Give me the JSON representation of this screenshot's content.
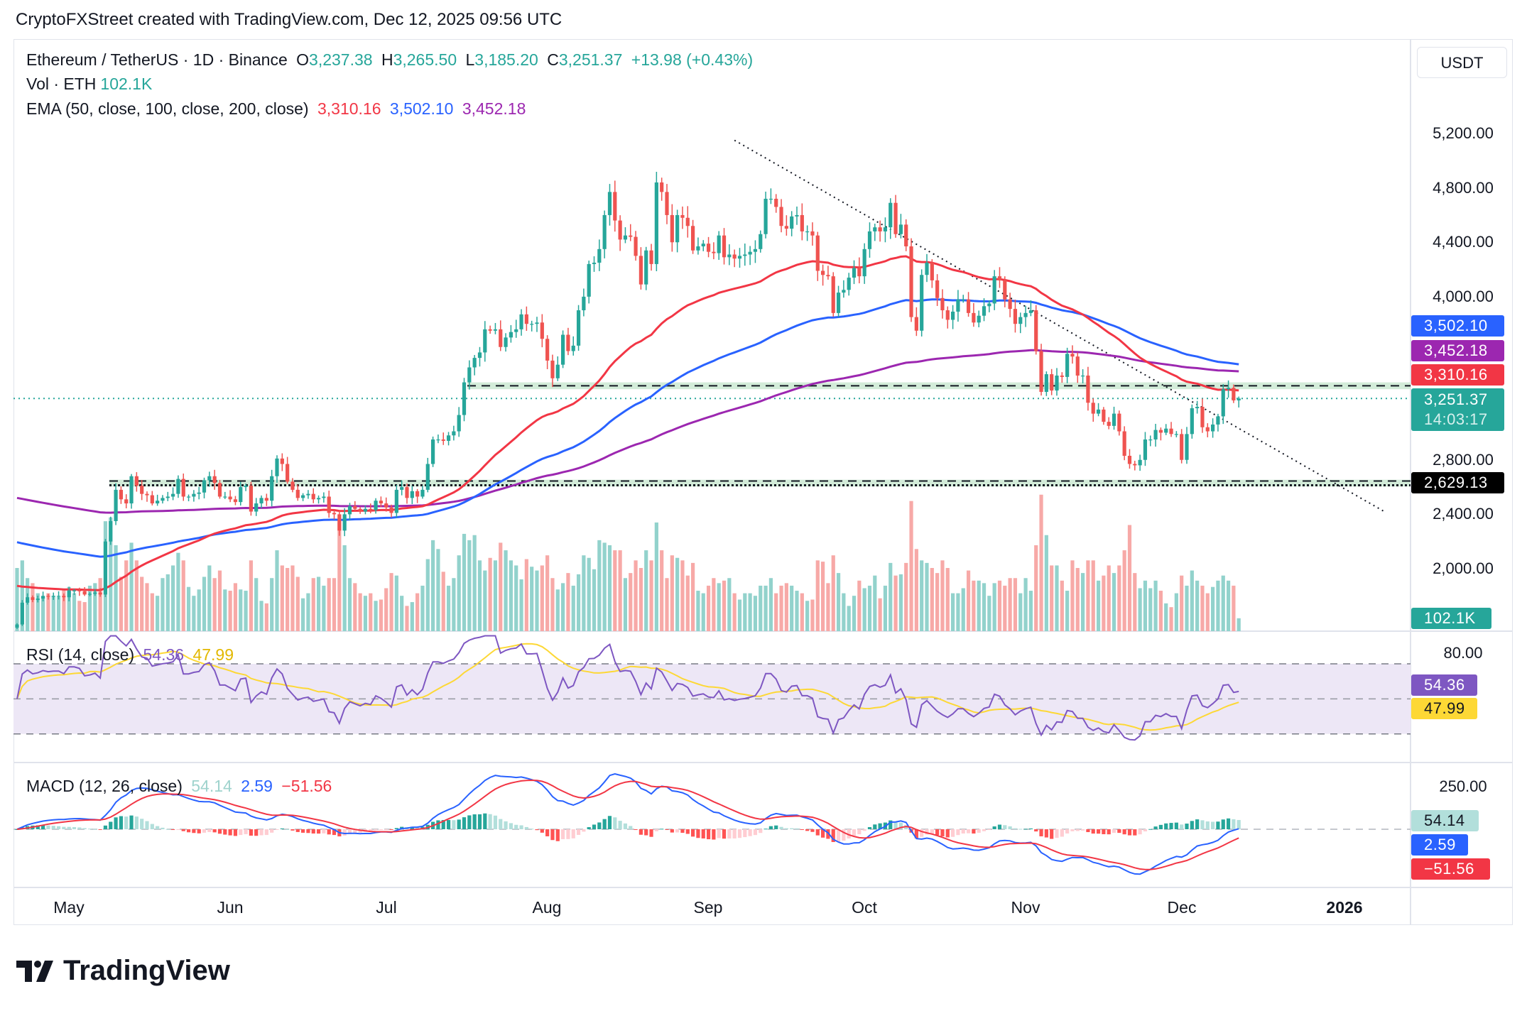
{
  "header": {
    "credit": "CryptoFXStreet created with TradingView.com, Dec 12, 2025 09:56 UTC"
  },
  "legend": {
    "symbol": "Ethereum / TetherUS · 1D · Binance",
    "o_label": "O",
    "o": "3,237.38",
    "h_label": "H",
    "h": "3,265.50",
    "l_label": "L",
    "l": "3,185.20",
    "c_label": "C",
    "c": "3,251.37",
    "change": "+13.98 (+0.43%)",
    "vol_label": "Vol · ETH",
    "vol": "102.1K",
    "ema_label": "EMA (50, close, 100, close, 200, close)",
    "ema50": "3,310.16",
    "ema100": "3,502.10",
    "ema200": "3,452.18",
    "rsi_label": "RSI (14, close)",
    "rsi": "54.36",
    "rsi_ma": "47.99",
    "macd_label": "MACD (12, 26, close)",
    "macd_hist": "54.14",
    "macd": "2.59",
    "macd_signal": "−51.56"
  },
  "price_axis": {
    "currency": "USDT",
    "ticks": [
      "5,200.00",
      "4,800.00",
      "4,400.00",
      "4,000.00",
      "2,800.00",
      "2,400.00",
      "2,000.00"
    ],
    "tags": {
      "ema100": "3,502.10",
      "ema200": "3,452.18",
      "ema50": "3,310.16",
      "last": "3,251.37",
      "countdown": "14:03:17",
      "support": "2,629.13",
      "volume": "102.1K"
    },
    "rsi_ticks": [
      "80.00"
    ],
    "rsi_tags": {
      "rsi": "54.36",
      "rsi_ma": "47.99"
    },
    "macd_ticks": [
      "250.00"
    ],
    "macd_tags": {
      "hist": "54.14",
      "macd": "2.59",
      "signal": "−51.56"
    }
  },
  "time_axis": [
    "May",
    "Jun",
    "Jul",
    "Aug",
    "Sep",
    "Oct",
    "Nov",
    "Dec",
    "2026"
  ],
  "colors": {
    "up": "#26a69a",
    "down": "#ef5350",
    "ema50": "#f23645",
    "ema100": "#2962ff",
    "ema200": "#9c27b0",
    "rsi": "#7e57c2",
    "rsi_ma": "#fdd835",
    "macd": "#2962ff",
    "signal": "#f23645"
  },
  "branding": {
    "logo": "TradingView"
  },
  "chart_data": {
    "type": "candlestick",
    "symbol": "ETH/USDT",
    "interval": "1D",
    "last_candle": {
      "open": 3237.38,
      "high": 3265.5,
      "low": 3185.2,
      "close": 3251.37
    },
    "ylim": [
      1600,
      5400
    ],
    "levels": {
      "resistance": 3345,
      "support": 2629.13,
      "last": 3251.37
    },
    "trendline": [
      {
        "date": "2025-09-06",
        "price": 5150
      },
      {
        "date": "2026-01-09",
        "price": 2420
      }
    ],
    "close": [
      1590,
      1750,
      1790,
      1770,
      1780,
      1800,
      1795,
      1800,
      1800,
      1790,
      1840,
      1840,
      1835,
      1810,
      1815,
      1825,
      1810,
      2200,
      2350,
      2580,
      2510,
      2480,
      2680,
      2610,
      2550,
      2540,
      2480,
      2500,
      2520,
      2530,
      2550,
      2660,
      2530,
      2530,
      2550,
      2560,
      2650,
      2680,
      2630,
      2530,
      2530,
      2510,
      2490,
      2600,
      2610,
      2420,
      2480,
      2520,
      2500,
      2680,
      2810,
      2770,
      2640,
      2580,
      2520,
      2540,
      2550,
      2510,
      2520,
      2530,
      2410,
      2400,
      2280,
      2400,
      2460,
      2440,
      2420,
      2440,
      2430,
      2500,
      2480,
      2450,
      2410,
      2580,
      2600,
      2520,
      2570,
      2530,
      2580,
      2770,
      2950,
      2950,
      2940,
      2980,
      3010,
      3130,
      3370,
      3480,
      3550,
      3590,
      3760,
      3750,
      3760,
      3630,
      3700,
      3740,
      3760,
      3870,
      3800,
      3800,
      3810,
      3690,
      3530,
      3400,
      3500,
      3720,
      3600,
      3640,
      3900,
      4000,
      4240,
      4250,
      4350,
      4600,
      4770,
      4560,
      4420,
      4450,
      4440,
      4300,
      4090,
      4340,
      4240,
      4840,
      4770,
      4600,
      4400,
      4600,
      4580,
      4520,
      4340,
      4370,
      4390,
      4330,
      4320,
      4450,
      4290,
      4310,
      4280,
      4300,
      4310,
      4330,
      4350,
      4460,
      4720,
      4720,
      4660,
      4520,
      4500,
      4590,
      4600,
      4480,
      4480,
      4450,
      4190,
      4160,
      4150,
      3880,
      4030,
      4050,
      4140,
      4210,
      4150,
      4350,
      4480,
      4510,
      4480,
      4510,
      4690,
      4460,
      4530,
      4370,
      3850,
      3750,
      4160,
      4250,
      4120,
      3990,
      3900,
      3830,
      3890,
      3980,
      3980,
      3880,
      3810,
      3860,
      3930,
      3950,
      4150,
      4120,
      3980,
      3910,
      3800,
      3850,
      3880,
      3900,
      3600,
      3300,
      3430,
      3310,
      3420,
      3410,
      3580,
      3560,
      3420,
      3420,
      3220,
      3140,
      3170,
      3080,
      3050,
      3140,
      3010,
      2830,
      2770,
      2760,
      2800,
      2950,
      2950,
      3020,
      3000,
      3030,
      2990,
      2990,
      2800,
      2990,
      3180,
      3190,
      3040,
      3010,
      3060,
      3120,
      3320,
      3330,
      3237.38,
      3251.37
    ],
    "volume_k": [
      500,
      560,
      420,
      380,
      300,
      260,
      300,
      280,
      270,
      330,
      350,
      300,
      240,
      230,
      360,
      380,
      420,
      870,
      900,
      680,
      430,
      560,
      700,
      560,
      430,
      380,
      300,
      280,
      420,
      450,
      520,
      620,
      560,
      350,
      280,
      330,
      430,
      520,
      420,
      480,
      330,
      320,
      380,
      330,
      320,
      560,
      420,
      240,
      220,
      420,
      640,
      520,
      500,
      520,
      430,
      260,
      300,
      420,
      430,
      360,
      420,
      420,
      860,
      680,
      420,
      380,
      300,
      280,
      300,
      240,
      250,
      340,
      460,
      440,
      280,
      200,
      230,
      300,
      360,
      570,
      720,
      650,
      470,
      360,
      420,
      600,
      770,
      720,
      760,
      560,
      480,
      580,
      560,
      700,
      640,
      560,
      520,
      410,
      570,
      510,
      480,
      520,
      600,
      420,
      330,
      380,
      460,
      360,
      450,
      600,
      580,
      490,
      720,
      700,
      680,
      640,
      640,
      420,
      460,
      560,
      500,
      640,
      560,
      860,
      640,
      420,
      600,
      580,
      560,
      440,
      540,
      320,
      300,
      360,
      420,
      380,
      400,
      420,
      300,
      250,
      300,
      300,
      280,
      360,
      360,
      420,
      300,
      360,
      380,
      360,
      320,
      300,
      240,
      250,
      560,
      550,
      380,
      600,
      460,
      300,
      200,
      280,
      400,
      340,
      360,
      440,
      260,
      360,
      540,
      440,
      450,
      540,
      1030,
      650,
      560,
      540,
      500,
      460,
      560,
      500,
      300,
      300,
      340,
      480,
      400,
      400,
      380,
      280,
      380,
      400,
      360,
      420,
      420,
      300,
      420,
      320,
      680,
      1080,
      760,
      520,
      520,
      400,
      320,
      560,
      500,
      460,
      560,
      560,
      400,
      440,
      520,
      460,
      520,
      640,
      840,
      460,
      340,
      400,
      340,
      400,
      320,
      220,
      190,
      300,
      440,
      360,
      480,
      400,
      360,
      300,
      350,
      400,
      440,
      400,
      360,
      102.1
    ],
    "indicators": [
      "EMA 50",
      "EMA 100",
      "EMA 200",
      "RSI 14",
      "MACD 12 26"
    ]
  }
}
